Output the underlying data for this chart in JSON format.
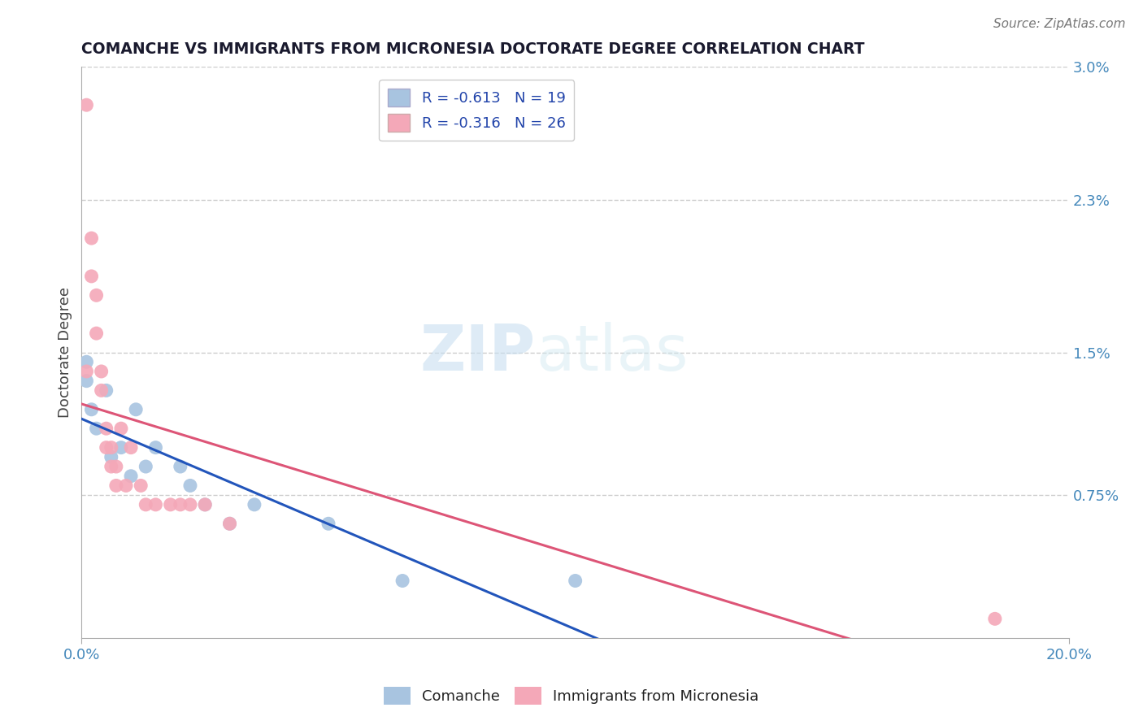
{
  "title": "COMANCHE VS IMMIGRANTS FROM MICRONESIA DOCTORATE DEGREE CORRELATION CHART",
  "source_text": "Source: ZipAtlas.com",
  "ylabel": "Doctorate Degree",
  "xlim": [
    0.0,
    0.2
  ],
  "ylim": [
    0.0,
    0.03
  ],
  "ytick_labels": [
    "0.75%",
    "1.5%",
    "2.3%",
    "3.0%"
  ],
  "ytick_vals": [
    0.0075,
    0.015,
    0.023,
    0.03
  ],
  "legend_blue_label": "R = -0.613   N = 19",
  "legend_pink_label": "R = -0.316   N = 26",
  "blue_color": "#a8c4e0",
  "pink_color": "#f4a8b8",
  "blue_line_color": "#2255bb",
  "pink_line_color": "#dd5577",
  "background_color": "#ffffff",
  "grid_color": "#cccccc",
  "comanche_x": [
    0.001,
    0.001,
    0.002,
    0.003,
    0.005,
    0.006,
    0.008,
    0.01,
    0.011,
    0.013,
    0.015,
    0.02,
    0.022,
    0.025,
    0.03,
    0.035,
    0.05,
    0.065,
    0.1
  ],
  "comanche_y": [
    0.0145,
    0.0135,
    0.012,
    0.011,
    0.013,
    0.0095,
    0.01,
    0.0085,
    0.012,
    0.009,
    0.01,
    0.009,
    0.008,
    0.007,
    0.006,
    0.007,
    0.006,
    0.003,
    0.003
  ],
  "micronesia_x": [
    0.001,
    0.001,
    0.002,
    0.002,
    0.003,
    0.003,
    0.004,
    0.004,
    0.005,
    0.005,
    0.006,
    0.006,
    0.007,
    0.007,
    0.008,
    0.009,
    0.01,
    0.012,
    0.013,
    0.015,
    0.018,
    0.02,
    0.022,
    0.025,
    0.03,
    0.185
  ],
  "micronesia_y": [
    0.028,
    0.014,
    0.021,
    0.019,
    0.018,
    0.016,
    0.014,
    0.013,
    0.011,
    0.01,
    0.01,
    0.009,
    0.009,
    0.008,
    0.011,
    0.008,
    0.01,
    0.008,
    0.007,
    0.007,
    0.007,
    0.007,
    0.007,
    0.007,
    0.006,
    0.001
  ],
  "watermark_zip": "ZIP",
  "watermark_atlas": "atlas"
}
